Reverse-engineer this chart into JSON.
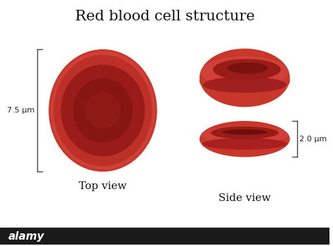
{
  "title": "Red blood cell structure",
  "title_fontsize": 15,
  "background_color": "#ffffff",
  "label_top_view": "Top view",
  "label_side_view": "Side view",
  "measure_left": "7.5 μm",
  "measure_right": "2.0 μm",
  "col_outer_bright": "#c8372a",
  "col_rim_light": "#d4473a",
  "col_body": "#b83028",
  "col_center_dark": "#8b1a14",
  "col_inner_dark": "#7a1210"
}
